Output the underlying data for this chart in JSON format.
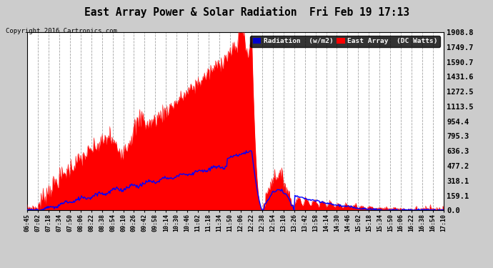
{
  "title": "East Array Power & Solar Radiation  Fri Feb 19 17:13",
  "copyright_text": "Copyright 2016 Cartronics.com",
  "legend_radiation": "Radiation  (w/m2)",
  "legend_east_array": "East Array  (DC Watts)",
  "yticks": [
    0.0,
    159.1,
    318.1,
    477.2,
    636.3,
    795.3,
    954.4,
    1113.5,
    1272.5,
    1431.6,
    1590.7,
    1749.7,
    1908.8
  ],
  "ymax": 1908.8,
  "bg_color": "#cccccc",
  "plot_bg_color": "#ffffff",
  "grid_color": "#999999",
  "title_color": "#000000",
  "red_color": "#ff0000",
  "blue_color": "#0000ff",
  "radiation_color": "#0000cc",
  "east_array_color": "#ff0000",
  "xtick_labels": [
    "06:45",
    "07:02",
    "07:18",
    "07:34",
    "07:50",
    "08:06",
    "08:22",
    "08:38",
    "08:54",
    "09:10",
    "09:26",
    "09:42",
    "09:58",
    "10:14",
    "10:30",
    "10:46",
    "11:02",
    "11:18",
    "11:34",
    "11:50",
    "12:06",
    "12:22",
    "12:38",
    "12:54",
    "13:10",
    "13:26",
    "13:42",
    "13:58",
    "14:14",
    "14:30",
    "14:46",
    "15:02",
    "15:18",
    "15:34",
    "15:50",
    "16:06",
    "16:22",
    "16:38",
    "16:54",
    "17:10"
  ],
  "n_points": 600
}
